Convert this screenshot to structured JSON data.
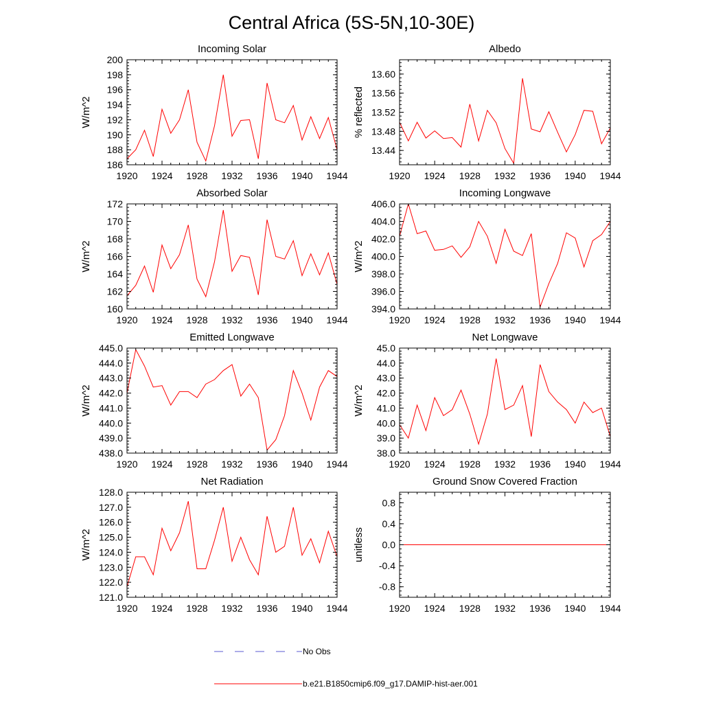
{
  "figure": {
    "title": "Central Africa (5S-5N,10-30E)",
    "legend": [
      {
        "label": "No Obs",
        "color": "#5a5ad0",
        "style": "dashed"
      },
      {
        "label": "b.e21.B1850cmip6.f09_g17.DAMIP-hist-aer.001",
        "color": "#ff0000",
        "style": "solid"
      }
    ]
  },
  "chart_data": [
    {
      "type": "line",
      "title": "Incoming Solar",
      "ylabel": "W/m^2",
      "xlim": [
        1920,
        1944
      ],
      "ylim": [
        186,
        200
      ],
      "xticks": [
        1920,
        1924,
        1928,
        1932,
        1936,
        1940,
        1944
      ],
      "xtick_labels": [
        "1920",
        "1924",
        "1928",
        "1932",
        "1936",
        "1940",
        "1944"
      ],
      "yticks": [
        186,
        188,
        190,
        192,
        194,
        196,
        198,
        200
      ],
      "ytick_labels": [
        "186",
        "188",
        "190",
        "192",
        "194",
        "196",
        "198",
        "200"
      ],
      "series": [
        {
          "color": "#ff0000",
          "x": [
            1920,
            1921,
            1922,
            1923,
            1924,
            1925,
            1926,
            1927,
            1928,
            1929,
            1930,
            1931,
            1932,
            1933,
            1934,
            1935,
            1936,
            1937,
            1938,
            1939,
            1940,
            1941,
            1942,
            1943,
            1944
          ],
          "y": [
            186.8,
            188.0,
            190.6,
            187.1,
            193.4,
            190.2,
            192.0,
            196.0,
            189.0,
            186.5,
            191.2,
            198.0,
            189.8,
            191.9,
            192.0,
            186.8,
            196.9,
            192.0,
            191.6,
            193.9,
            189.3,
            192.4,
            189.5,
            192.3,
            188.0
          ]
        }
      ]
    },
    {
      "type": "line",
      "title": "Albedo",
      "ylabel": "% reflected",
      "xlim": [
        1920,
        1944
      ],
      "ylim": [
        13.41,
        13.63
      ],
      "xticks": [
        1920,
        1924,
        1928,
        1932,
        1936,
        1940,
        1944
      ],
      "xtick_labels": [
        "1920",
        "1924",
        "1928",
        "1932",
        "1936",
        "1940",
        "1944"
      ],
      "yticks": [
        13.44,
        13.48,
        13.52,
        13.56,
        13.6
      ],
      "ytick_labels": [
        "13.44",
        "13.48",
        "13.52",
        "13.56",
        "13.60"
      ],
      "series": [
        {
          "color": "#ff0000",
          "x": [
            1920,
            1921,
            1922,
            1923,
            1924,
            1925,
            1926,
            1927,
            1928,
            1929,
            1930,
            1931,
            1932,
            1933,
            1934,
            1935,
            1936,
            1937,
            1938,
            1939,
            1940,
            1941,
            1942,
            1943,
            1944
          ],
          "y": [
            13.499,
            13.46,
            13.499,
            13.466,
            13.481,
            13.465,
            13.467,
            13.447,
            13.537,
            13.46,
            13.524,
            13.498,
            13.444,
            13.413,
            13.591,
            13.485,
            13.479,
            13.521,
            13.478,
            13.437,
            13.473,
            13.524,
            13.522,
            13.454,
            13.487
          ]
        }
      ]
    },
    {
      "type": "line",
      "title": "Absorbed Solar",
      "ylabel": "W/m^2",
      "xlim": [
        1920,
        1944
      ],
      "ylim": [
        160,
        172
      ],
      "xticks": [
        1920,
        1924,
        1928,
        1932,
        1936,
        1940,
        1944
      ],
      "xtick_labels": [
        "1920",
        "1924",
        "1928",
        "1932",
        "1936",
        "1940",
        "1944"
      ],
      "yticks": [
        160,
        162,
        164,
        166,
        168,
        170,
        172
      ],
      "ytick_labels": [
        "160",
        "162",
        "164",
        "166",
        "168",
        "170",
        "172"
      ],
      "series": [
        {
          "color": "#ff0000",
          "x": [
            1920,
            1921,
            1922,
            1923,
            1924,
            1925,
            1926,
            1927,
            1928,
            1929,
            1930,
            1931,
            1932,
            1933,
            1934,
            1935,
            1936,
            1937,
            1938,
            1939,
            1940,
            1941,
            1942,
            1943,
            1944
          ],
          "y": [
            161.5,
            162.7,
            164.9,
            161.9,
            167.3,
            164.6,
            166.2,
            169.6,
            163.4,
            161.4,
            165.4,
            171.3,
            164.3,
            166.1,
            165.9,
            161.6,
            170.2,
            166.0,
            165.7,
            167.8,
            163.8,
            166.3,
            163.9,
            166.4,
            162.8
          ]
        }
      ]
    },
    {
      "type": "line",
      "title": "Incoming Longwave",
      "ylabel": "W/m^2",
      "xlim": [
        1920,
        1944
      ],
      "ylim": [
        394,
        406
      ],
      "xticks": [
        1920,
        1924,
        1928,
        1932,
        1936,
        1940,
        1944
      ],
      "xtick_labels": [
        "1920",
        "1924",
        "1928",
        "1932",
        "1936",
        "1940",
        "1944"
      ],
      "yticks": [
        394,
        396,
        398,
        400,
        402,
        404,
        406
      ],
      "ytick_labels": [
        "394.0",
        "396.0",
        "398.0",
        "400.0",
        "402.0",
        "404.0",
        "406.0"
      ],
      "series": [
        {
          "color": "#ff0000",
          "x": [
            1920,
            1921,
            1922,
            1923,
            1924,
            1925,
            1926,
            1927,
            1928,
            1929,
            1930,
            1931,
            1932,
            1933,
            1934,
            1935,
            1936,
            1937,
            1938,
            1939,
            1940,
            1941,
            1942,
            1943,
            1944
          ],
          "y": [
            402.3,
            406.0,
            402.6,
            402.9,
            400.7,
            400.8,
            401.2,
            399.9,
            401.1,
            404.0,
            402.3,
            399.2,
            403.1,
            400.6,
            400.1,
            402.6,
            394.2,
            396.9,
            399.2,
            402.7,
            402.1,
            398.8,
            401.8,
            402.5,
            404.0
          ]
        }
      ]
    },
    {
      "type": "line",
      "title": "Emitted Longwave",
      "ylabel": "W/m^2",
      "xlim": [
        1920,
        1944
      ],
      "ylim": [
        438,
        445
      ],
      "xticks": [
        1920,
        1924,
        1928,
        1932,
        1936,
        1940,
        1944
      ],
      "xtick_labels": [
        "1920",
        "1924",
        "1928",
        "1932",
        "1936",
        "1940",
        "1944"
      ],
      "yticks": [
        438,
        439,
        440,
        441,
        442,
        443,
        444,
        445
      ],
      "ytick_labels": [
        "438.0",
        "439.0",
        "440.0",
        "441.0",
        "442.0",
        "443.0",
        "444.0",
        "445.0"
      ],
      "series": [
        {
          "color": "#ff0000",
          "x": [
            1920,
            1921,
            1922,
            1923,
            1924,
            1925,
            1926,
            1927,
            1928,
            1929,
            1930,
            1931,
            1932,
            1933,
            1934,
            1935,
            1936,
            1937,
            1938,
            1939,
            1940,
            1941,
            1942,
            1943,
            1944
          ],
          "y": [
            442.0,
            444.9,
            443.8,
            442.4,
            442.5,
            441.2,
            442.1,
            442.1,
            441.7,
            442.6,
            442.9,
            443.5,
            443.9,
            441.8,
            442.6,
            441.7,
            438.2,
            438.9,
            440.5,
            443.5,
            442.0,
            440.2,
            442.4,
            443.5,
            443.1
          ]
        }
      ]
    },
    {
      "type": "line",
      "title": "Net Longwave",
      "ylabel": "W/m^2",
      "xlim": [
        1920,
        1944
      ],
      "ylim": [
        38,
        45
      ],
      "xticks": [
        1920,
        1924,
        1928,
        1932,
        1936,
        1940,
        1944
      ],
      "xtick_labels": [
        "1920",
        "1924",
        "1928",
        "1932",
        "1936",
        "1940",
        "1944"
      ],
      "yticks": [
        38,
        39,
        40,
        41,
        42,
        43,
        44,
        45
      ],
      "ytick_labels": [
        "38.0",
        "39.0",
        "40.0",
        "41.0",
        "42.0",
        "43.0",
        "44.0",
        "45.0"
      ],
      "series": [
        {
          "color": "#ff0000",
          "x": [
            1920,
            1921,
            1922,
            1923,
            1924,
            1925,
            1926,
            1927,
            1928,
            1929,
            1930,
            1931,
            1932,
            1933,
            1934,
            1935,
            1936,
            1937,
            1938,
            1939,
            1940,
            1941,
            1942,
            1943,
            1944
          ],
          "y": [
            39.9,
            39.0,
            41.2,
            39.5,
            41.7,
            40.5,
            40.9,
            42.2,
            40.6,
            38.6,
            40.6,
            44.3,
            40.9,
            41.2,
            42.5,
            39.1,
            43.9,
            42.1,
            41.4,
            40.9,
            40.0,
            41.4,
            40.7,
            41.0,
            39.1
          ]
        }
      ]
    },
    {
      "type": "line",
      "title": "Net Radiation",
      "ylabel": "W/m^2",
      "xlim": [
        1920,
        1944
      ],
      "ylim": [
        121,
        128
      ],
      "xticks": [
        1920,
        1924,
        1928,
        1932,
        1936,
        1940,
        1944
      ],
      "xtick_labels": [
        "1920",
        "1924",
        "1928",
        "1932",
        "1936",
        "1940",
        "1944"
      ],
      "yticks": [
        121,
        122,
        123,
        124,
        125,
        126,
        127,
        128
      ],
      "ytick_labels": [
        "121.0",
        "122.0",
        "123.0",
        "124.0",
        "125.0",
        "126.0",
        "127.0",
        "128.0"
      ],
      "series": [
        {
          "color": "#ff0000",
          "x": [
            1920,
            1921,
            1922,
            1923,
            1924,
            1925,
            1926,
            1927,
            1928,
            1929,
            1930,
            1931,
            1932,
            1933,
            1934,
            1935,
            1936,
            1937,
            1938,
            1939,
            1940,
            1941,
            1942,
            1943,
            1944
          ],
          "y": [
            121.7,
            123.7,
            123.7,
            122.5,
            125.6,
            124.1,
            125.3,
            127.4,
            122.9,
            122.9,
            124.8,
            127.0,
            123.4,
            125.0,
            123.5,
            122.5,
            126.4,
            124.0,
            124.4,
            127.0,
            123.8,
            124.9,
            123.3,
            125.4,
            123.7
          ]
        }
      ]
    },
    {
      "type": "line",
      "title": "Ground Snow Covered Fraction",
      "ylabel": "unitless",
      "xlim": [
        1920,
        1944
      ],
      "ylim": [
        -1.0,
        1.0
      ],
      "xticks": [
        1920,
        1924,
        1928,
        1932,
        1936,
        1940,
        1944
      ],
      "xtick_labels": [
        "1920",
        "1924",
        "1928",
        "1932",
        "1936",
        "1940",
        "1944"
      ],
      "yticks": [
        -0.8,
        -0.4,
        0.0,
        0.4,
        0.8
      ],
      "ytick_labels": [
        "-0.8",
        "-0.4",
        "0.0",
        "0.4",
        "0.8"
      ],
      "series": [
        {
          "color": "#ff0000",
          "x": [
            1920,
            1921,
            1922,
            1923,
            1924,
            1925,
            1926,
            1927,
            1928,
            1929,
            1930,
            1931,
            1932,
            1933,
            1934,
            1935,
            1936,
            1937,
            1938,
            1939,
            1940,
            1941,
            1942,
            1943,
            1944
          ],
          "y": [
            0,
            0,
            0,
            0,
            0,
            0,
            0,
            0,
            0,
            0,
            0,
            0,
            0,
            0,
            0,
            0,
            0,
            0,
            0,
            0,
            0,
            0,
            0,
            0,
            0
          ]
        }
      ]
    }
  ]
}
